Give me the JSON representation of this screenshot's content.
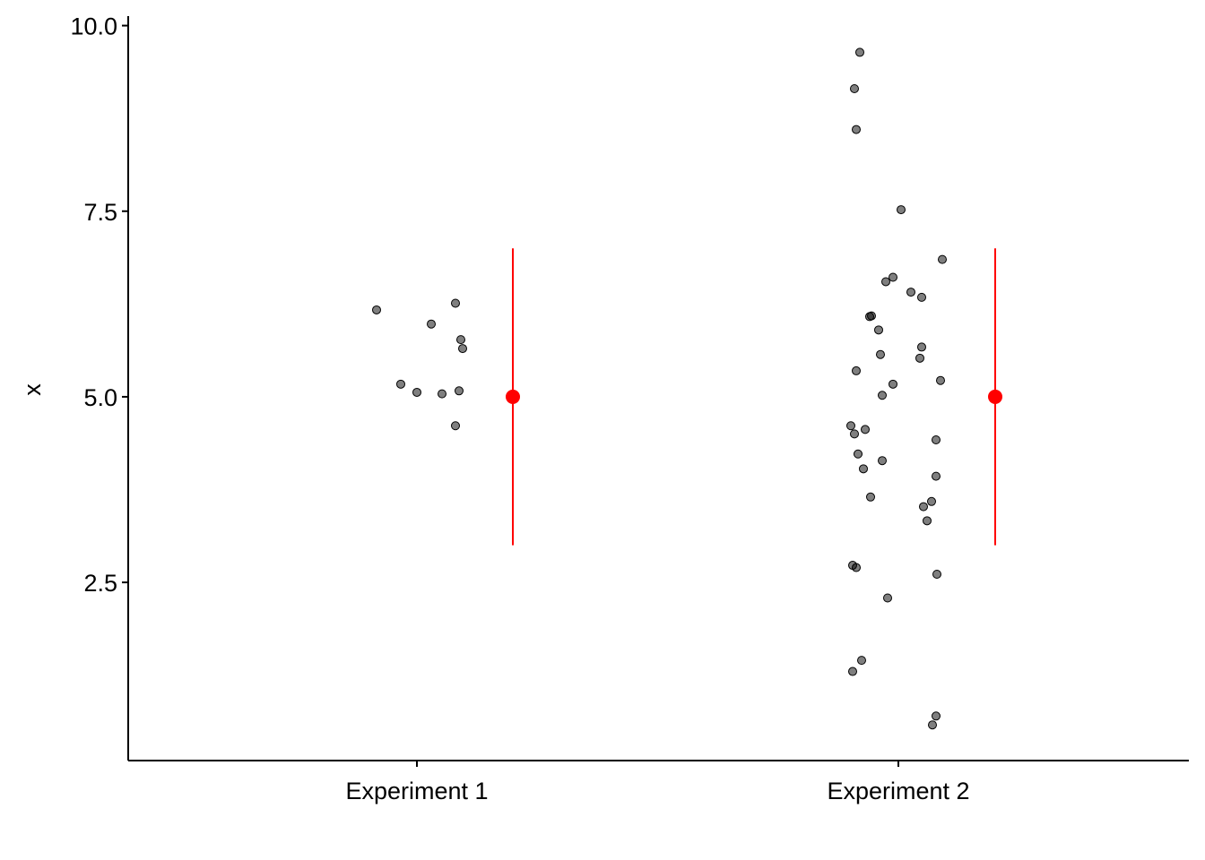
{
  "chart_data": {
    "type": "scatter",
    "title": "",
    "xlabel": "",
    "ylabel": "x",
    "ylim": [
      0.1,
      10.2
    ],
    "y_ticks": [
      "2.5",
      "5.0",
      "7.5",
      "10.0"
    ],
    "y_tick_values": [
      2.5,
      5.0,
      7.5,
      10.0
    ],
    "categories": [
      "Experiment 1",
      "Experiment 2"
    ],
    "grid": false,
    "legend": "none",
    "point_color": "#000000",
    "summary_color": "#ff0000",
    "points": [
      {
        "category": "Experiment 1",
        "values": [
          6.17,
          5.98,
          6.26,
          5.77,
          5.65,
          5.17,
          5.06,
          5.04,
          5.08,
          4.61
        ]
      },
      {
        "category": "Experiment 2",
        "values": [
          9.64,
          9.15,
          8.6,
          7.52,
          6.85,
          6.61,
          6.55,
          6.41,
          6.34,
          6.09,
          6.08,
          5.9,
          5.67,
          5.57,
          5.52,
          5.35,
          5.22,
          5.17,
          5.02,
          4.61,
          4.56,
          4.5,
          4.42,
          4.23,
          4.14,
          4.03,
          3.93,
          3.65,
          3.59,
          3.52,
          3.33,
          2.73,
          2.7,
          2.61,
          2.29,
          1.45,
          1.3,
          0.7,
          0.58
        ]
      }
    ],
    "summary": [
      {
        "category": "Experiment 1",
        "mean": 5.0,
        "low": 3.0,
        "high": 7.0
      },
      {
        "category": "Experiment 2",
        "mean": 5.0,
        "low": 3.0,
        "high": 7.0
      }
    ]
  }
}
